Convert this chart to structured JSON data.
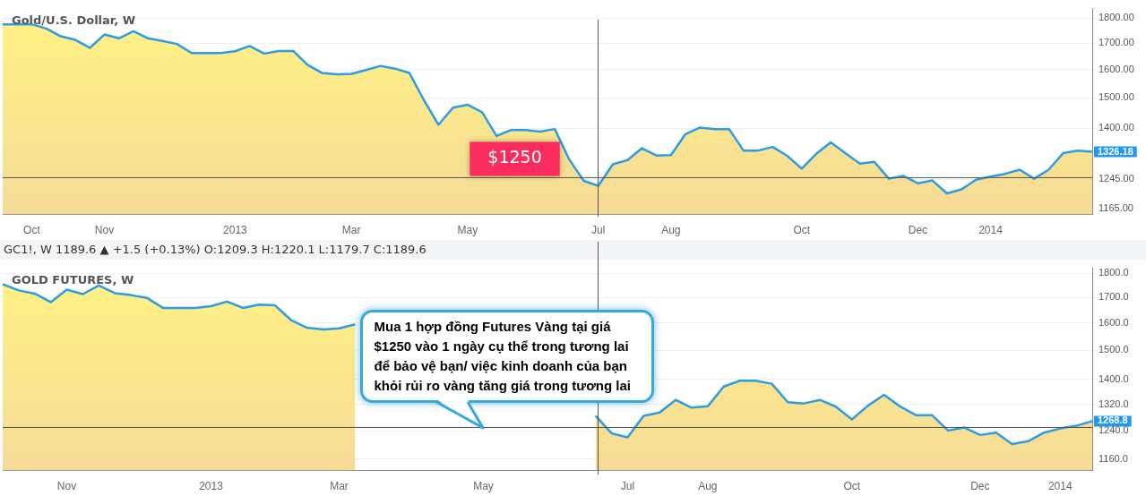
{
  "chart_data": [
    {
      "type": "area",
      "title": "Gold/U.S. Dollar, W",
      "categories": [
        null,
        null,
        "Oct",
        null,
        null,
        null,
        null,
        "Nov",
        null,
        null,
        null,
        null,
        null,
        null,
        null,
        null,
        "2013",
        null,
        null,
        null,
        null,
        null,
        null,
        null,
        "Mar",
        null,
        null,
        null,
        null,
        null,
        null,
        null,
        "May",
        null,
        null,
        null,
        null,
        null,
        null,
        null,
        null,
        "Jul",
        null,
        null,
        null,
        null,
        "Aug",
        null,
        null,
        null,
        null,
        null,
        null,
        null,
        null,
        "Oct",
        null,
        null,
        null,
        null,
        null,
        null,
        null,
        "Dec",
        null,
        null,
        null,
        null,
        "2014",
        null,
        null,
        null,
        null,
        null,
        null,
        null
      ],
      "series": [
        {
          "color": "#2e9be6",
          "values": [
            1775,
            1775,
            1775,
            1758,
            1727,
            1713,
            1682,
            1734,
            1719,
            1747,
            1719,
            1709,
            1697,
            1662,
            1662,
            1662,
            1669,
            1689,
            1660,
            1670,
            1670,
            1617,
            1588,
            1583,
            1585,
            1599,
            1614,
            1604,
            1588,
            1492,
            1411,
            1467,
            1477,
            1452,
            1375,
            1394,
            1394,
            1389,
            1397,
            1303,
            1241,
            1227,
            1289,
            1301,
            1337,
            1315,
            1316,
            1381,
            1402,
            1397,
            1397,
            1330,
            1330,
            1341,
            1314,
            1276,
            1320,
            1355,
            1322,
            1291,
            1296,
            1247,
            1255,
            1234,
            1242,
            1206,
            1217,
            1244,
            1253,
            1261,
            1273,
            1247,
            1273,
            1322,
            1330,
            1326.18
          ]
        }
      ],
      "log": true,
      "ylim": [
        1149,
        1840
      ],
      "yticks": [
        {
          "value": 1800,
          "label": "1800.00"
        },
        {
          "value": 1700,
          "label": "1700.00"
        },
        {
          "value": 1600,
          "label": "1600.00"
        },
        {
          "value": 1500,
          "label": "1500.00"
        },
        {
          "value": 1400,
          "label": "1400.00"
        },
        {
          "value": 1245,
          "label": "1245.00"
        },
        {
          "value": 1165,
          "label": "1165.00"
        }
      ],
      "grid": "y",
      "marker": "none",
      "ref_lines": [
        {
          "axis": "y",
          "value": 1250,
          "label": "$1250"
        }
      ],
      "annotations": [
        "1326.18"
      ]
    },
    {
      "type": "area",
      "title": "GOLD FUTURES, W",
      "subtitle": "GC1!, W 1189.6 ▲ +1.5 (+0.13%) O:1209.3 H:1220.1 L:1179.7 C:1189.6",
      "categories": [
        null,
        null,
        null,
        null,
        "Nov",
        null,
        null,
        null,
        null,
        null,
        null,
        null,
        null,
        "2013",
        null,
        null,
        null,
        null,
        null,
        null,
        null,
        "Mar",
        null,
        null,
        null,
        null,
        null,
        null,
        null,
        null,
        "May",
        null,
        null,
        null,
        null,
        null,
        null,
        null,
        null,
        "Jul",
        null,
        null,
        null,
        null,
        "Aug",
        null,
        null,
        null,
        null,
        null,
        null,
        null,
        null,
        "Oct",
        null,
        null,
        null,
        null,
        null,
        null,
        null,
        "Dec",
        null,
        null,
        null,
        null,
        "2014",
        null,
        null
      ],
      "series": [
        {
          "color": "#2e9be6",
          "values": [
            1754,
            1728,
            1715,
            1681,
            1731,
            1713,
            1748,
            1717,
            1709,
            1698,
            1658,
            1658,
            1658,
            1665,
            1683,
            1658,
            1671,
            1668,
            1611,
            1582,
            1576,
            1580,
            1595,
            null,
            null,
            null,
            null,
            null,
            null,
            null,
            null,
            null,
            null,
            null,
            null,
            null,
            null,
            1285,
            1233,
            1221,
            1285,
            1295,
            1334,
            1310,
            1314,
            1377,
            1396,
            1396,
            1386,
            1327,
            1323,
            1334,
            1313,
            1274,
            1316,
            1350,
            1314,
            1287,
            1287,
            1241,
            1250,
            1228,
            1235,
            1202,
            1210,
            1235,
            1247,
            1255,
            1268.8
          ]
        }
      ],
      "log": true,
      "ylim": [
        1129,
        1821
      ],
      "yticks": [
        {
          "value": 1800,
          "label": "1800.0"
        },
        {
          "value": 1700,
          "label": "1700.0"
        },
        {
          "value": 1600,
          "label": "1600.0"
        },
        {
          "value": 1500,
          "label": "1500.0"
        },
        {
          "value": 1400,
          "label": "1400.0"
        },
        {
          "value": 1320,
          "label": "1320.0"
        },
        {
          "value": 1240,
          "label": "1240.0"
        },
        {
          "value": 1160,
          "label": "1160.0"
        }
      ],
      "grid": "y",
      "marker": "none",
      "ref_lines": [
        {
          "axis": "y",
          "value": 1250
        }
      ],
      "annotations": [
        {
          "text": "Mua 1 hợp đồng Futures Vàng tại giá $1250 vào 1 ngày cụ thể trong tương lai để bảo vệ bạn/ việc kinh doanh của bạn khỏi rủi ro vàng tăng giá trong tương lai",
          "x": "May",
          "y": 1250
        },
        "1268.8"
      ]
    }
  ]
}
